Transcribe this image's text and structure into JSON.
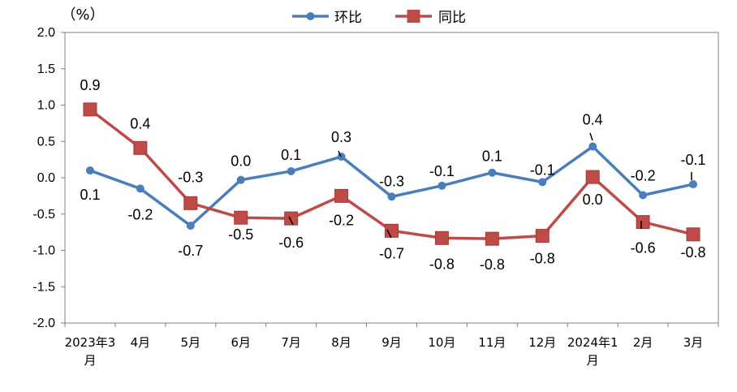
{
  "chart_data": {
    "type": "line",
    "unit_label": "（%）",
    "categories": [
      "2023年3月",
      "4月",
      "5月",
      "6月",
      "7月",
      "8月",
      "9月",
      "10月",
      "11月",
      "12月",
      "2024年1月",
      "2月",
      "3月"
    ],
    "ylim": [
      -2.0,
      2.0
    ],
    "yticks": [
      "2.0",
      "1.5",
      "1.0",
      "0.5",
      "0.0",
      "-0.5",
      "-1.0",
      "-1.5",
      "-2.0"
    ],
    "legend_position": "top-center",
    "grid": false,
    "series": [
      {
        "name": "环比",
        "color": "#4a7ebb",
        "marker": "circle",
        "values": [
          0.1,
          -0.15,
          -0.66,
          -0.03,
          0.09,
          0.29,
          -0.26,
          -0.11,
          0.07,
          -0.06,
          0.43,
          -0.24,
          -0.09
        ],
        "labels": [
          "0.1",
          "-0.2",
          "-0.7",
          "0.0",
          "0.1",
          "0.3",
          "-0.3",
          "-0.1",
          "0.1",
          "-0.1",
          "0.4",
          "-0.2",
          "-0.1"
        ]
      },
      {
        "name": "同比",
        "color": "#be4b48",
        "marker": "square",
        "values": [
          0.94,
          0.41,
          -0.35,
          -0.55,
          -0.56,
          -0.25,
          -0.73,
          -0.83,
          -0.84,
          -0.8,
          0.01,
          -0.61,
          -0.78
        ],
        "labels": [
          "0.9",
          "0.4",
          "-0.3",
          "-0.5",
          "-0.6",
          "-0.2",
          "-0.7",
          "-0.8",
          "-0.8",
          "-0.8",
          "0.0",
          "-0.6",
          "-0.8"
        ]
      }
    ]
  }
}
